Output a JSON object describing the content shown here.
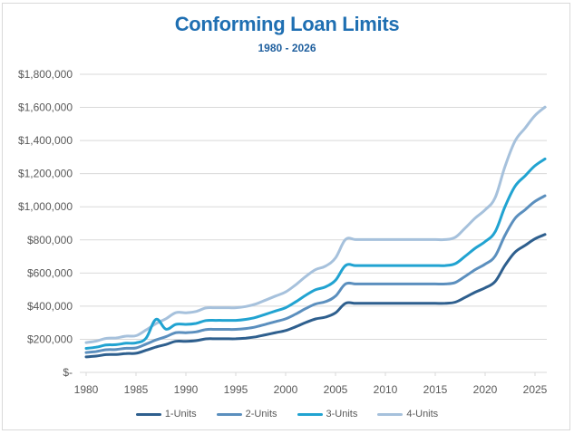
{
  "chart_data": {
    "type": "line",
    "title": "Conforming Loan Limits",
    "subtitle": "1980 - 2026",
    "xlabel": "",
    "ylabel": "",
    "ylim": [
      0,
      1800000
    ],
    "xlim": [
      1980,
      2026
    ],
    "grid": true,
    "legend_position": "bottom",
    "y_ticks": [
      {
        "value": 0,
        "label": "$-"
      },
      {
        "value": 200000,
        "label": "$200,000"
      },
      {
        "value": 400000,
        "label": "$400,000"
      },
      {
        "value": 600000,
        "label": "$600,000"
      },
      {
        "value": 800000,
        "label": "$800,000"
      },
      {
        "value": 1000000,
        "label": "$1,000,000"
      },
      {
        "value": 1200000,
        "label": "$1,200,000"
      },
      {
        "value": 1400000,
        "label": "$1,400,000"
      },
      {
        "value": 1600000,
        "label": "$1,600,000"
      },
      {
        "value": 1800000,
        "label": "$1,800,000"
      }
    ],
    "x_ticks": [
      1980,
      1985,
      1990,
      1995,
      2000,
      2005,
      2010,
      2015,
      2020,
      2025
    ],
    "x": [
      1980,
      1981,
      1982,
      1983,
      1984,
      1985,
      1986,
      1987,
      1988,
      1989,
      1990,
      1991,
      1992,
      1993,
      1994,
      1995,
      1996,
      1997,
      1998,
      1999,
      2000,
      2001,
      2002,
      2003,
      2004,
      2005,
      2006,
      2007,
      2008,
      2009,
      2010,
      2011,
      2012,
      2013,
      2014,
      2015,
      2016,
      2017,
      2018,
      2019,
      2020,
      2021,
      2022,
      2023,
      2024,
      2025,
      2026
    ],
    "series": [
      {
        "name": "1-Units",
        "color": "#2e5f8e",
        "values": [
          93750,
          98500,
          107000,
          108300,
          114000,
          115300,
          133250,
          153100,
          168700,
          187600,
          187450,
          191250,
          202300,
          203150,
          203150,
          203150,
          207000,
          214600,
          227150,
          240000,
          252700,
          275000,
          300700,
          322700,
          333700,
          359650,
          417000,
          417000,
          417000,
          417000,
          417000,
          417000,
          417000,
          417000,
          417000,
          417000,
          417000,
          424100,
          453100,
          484350,
          510400,
          548250,
          647200,
          726200,
          766550,
          806500,
          832750
        ]
      },
      {
        "name": "2-Units",
        "color": "#5b8fbe",
        "values": [
          120000,
          126000,
          136800,
          138500,
          145800,
          147500,
          170450,
          195850,
          215800,
          240000,
          239750,
          244650,
          258800,
          259850,
          259850,
          259850,
          264750,
          274550,
          290650,
          307100,
          323400,
          351950,
          384900,
          413100,
          427150,
          460400,
          533850,
          533850,
          533850,
          533850,
          533850,
          533850,
          533850,
          533850,
          533850,
          533850,
          533850,
          543000,
          580150,
          620200,
          653550,
          702000,
          828700,
          929850,
          981500,
          1032650,
          1066250
        ]
      },
      {
        "name": "3-Units",
        "color": "#21a3d1",
        "values": [
          145000,
          152000,
          165100,
          167200,
          176100,
          178200,
          206000,
          236650,
          260800,
          290000,
          289750,
          295650,
          312800,
          314100,
          314100,
          314100,
          320050,
          331850,
          351300,
          371200,
          390900,
          425400,
          465200,
          499300,
          516300,
          556500,
          645300,
          645300,
          645300,
          645300,
          645300,
          645300,
          645300,
          645300,
          645300,
          645300,
          645300,
          656350,
          701250,
          749650,
          789950,
          848500,
          1001650,
          1123900,
          1186350,
          1248150,
          1288800
        ]
      },
      {
        "name": "4-Units",
        "color": "#a6c1dc",
        "values": [
          180000,
          189000,
          205400,
          208000,
          219000,
          221500,
          256000,
          294150,
          324150,
          360450,
          360150,
          367500,
          388800,
          390400,
          390400,
          390400,
          397800,
          412450,
          436600,
          461350,
          485800,
          528700,
          578150,
          620500,
          641650,
          691600,
          801950,
          801950,
          801950,
          801950,
          801950,
          801950,
          801950,
          801950,
          801950,
          801950,
          801950,
          815650,
          871450,
          931600,
          981700,
          1054500,
          1244850,
          1396800,
          1474400,
          1551250,
          1601750
        ]
      }
    ]
  },
  "legend": {
    "items": [
      {
        "label": "1-Units",
        "color": "#2e5f8e"
      },
      {
        "label": "2-Units",
        "color": "#5b8fbe"
      },
      {
        "label": "3-Units",
        "color": "#21a3d1"
      },
      {
        "label": "4-Units",
        "color": "#a6c1dc"
      }
    ]
  },
  "theme": {
    "title_color": "#1f6fb2",
    "gridline_color": "#d9d9d9",
    "axis_text_color": "#595959"
  }
}
